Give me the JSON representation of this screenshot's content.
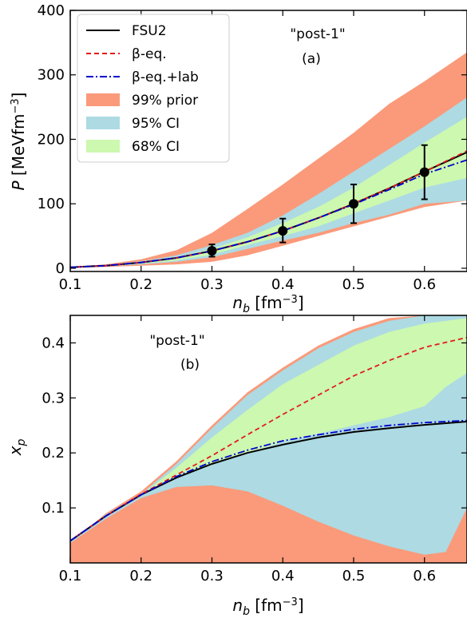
{
  "chart_data": [
    {
      "panel": "(a)",
      "type": "line",
      "annotation": "\"post-1\"",
      "panel_label": "(a)",
      "xlabel_sym": "n",
      "xlabel_sub": "b",
      "xlabel_unit": " [fm",
      "xlabel_exp": "−3",
      "xlabel_close": "]",
      "ylabel_sym": "P",
      "ylabel_unit": " [MeVfm",
      "ylabel_exp": "−3",
      "ylabel_close": "]",
      "xlim": [
        0.1,
        0.66
      ],
      "ylim": [
        -5,
        400
      ],
      "xticks": [
        0.1,
        0.2,
        0.3,
        0.4,
        0.5,
        0.6
      ],
      "xtick_labels": [
        "0.1",
        "0.2",
        "0.3",
        "0.4",
        "0.5",
        "0.6"
      ],
      "yticks": [
        0,
        100,
        200,
        300,
        400
      ],
      "ytick_labels": [
        "0",
        "100",
        "200",
        "300",
        "400"
      ],
      "legend_placement": "top-left",
      "legend": [
        {
          "label": "FSU2",
          "kind": "line",
          "color": "#000000",
          "dash": ""
        },
        {
          "label": "β-eq.",
          "kind": "line",
          "color": "#e41a1c",
          "dash": "6,4"
        },
        {
          "label": "β-eq.+lab",
          "kind": "line",
          "color": "#0000cc",
          "dash": "9,3,2,3"
        },
        {
          "label": "99% prior",
          "kind": "patch",
          "color": "#fa9a7a"
        },
        {
          "label": "95% CI",
          "kind": "patch",
          "color": "#addae3"
        },
        {
          "label": "68% CI",
          "kind": "patch",
          "color": "#ccf8b0"
        }
      ],
      "bands": [
        {
          "name": "99% prior",
          "color": "#fa9a7a",
          "x": [
            0.1,
            0.15,
            0.2,
            0.25,
            0.3,
            0.35,
            0.4,
            0.45,
            0.5,
            0.55,
            0.6,
            0.66
          ],
          "low": [
            1,
            2,
            4,
            6,
            10,
            20,
            35,
            50,
            65,
            80,
            95,
            105
          ],
          "high": [
            2,
            6,
            14,
            28,
            55,
            92,
            130,
            170,
            210,
            255,
            290,
            335
          ]
        },
        {
          "name": "95% CI",
          "color": "#addae3",
          "x": [
            0.1,
            0.15,
            0.2,
            0.25,
            0.3,
            0.35,
            0.4,
            0.45,
            0.5,
            0.55,
            0.6,
            0.66
          ],
          "low": [
            1,
            3,
            6,
            10,
            17,
            30,
            43,
            55,
            70,
            83,
            100,
            105
          ],
          "high": [
            2,
            5,
            11,
            20,
            36,
            55,
            82,
            115,
            150,
            185,
            220,
            265
          ]
        },
        {
          "name": "68% CI",
          "color": "#ccf8b0",
          "x": [
            0.1,
            0.15,
            0.2,
            0.25,
            0.3,
            0.35,
            0.4,
            0.45,
            0.5,
            0.55,
            0.6,
            0.66
          ],
          "low": [
            1,
            3,
            7,
            12,
            21,
            36,
            50,
            65,
            85,
            105,
            125,
            140
          ],
          "high": [
            2,
            4,
            9,
            17,
            30,
            48,
            70,
            95,
            125,
            160,
            195,
            235
          ]
        }
      ],
      "series": [
        {
          "name": "FSU2",
          "color": "#000000",
          "dash": "",
          "width": 2,
          "x": [
            0.1,
            0.15,
            0.2,
            0.25,
            0.3,
            0.35,
            0.4,
            0.45,
            0.5,
            0.55,
            0.6,
            0.66
          ],
          "y": [
            1.5,
            4,
            9,
            16,
            27,
            41,
            58,
            78,
            100,
            124,
            150,
            180
          ]
        },
        {
          "name": "β-eq.",
          "color": "#e41a1c",
          "dash": "6,4",
          "width": 1.8,
          "x": [
            0.1,
            0.15,
            0.2,
            0.25,
            0.3,
            0.35,
            0.4,
            0.45,
            0.5,
            0.55,
            0.6,
            0.66
          ],
          "y": [
            1.5,
            4,
            9,
            16,
            27,
            41,
            58,
            78,
            100,
            124,
            150,
            182
          ]
        },
        {
          "name": "β-eq.+lab",
          "color": "#0000cc",
          "dash": "9,3,2,3",
          "width": 1.8,
          "x": [
            0.1,
            0.15,
            0.2,
            0.25,
            0.3,
            0.35,
            0.4,
            0.45,
            0.5,
            0.55,
            0.6,
            0.66
          ],
          "y": [
            1.5,
            4,
            9,
            16,
            27,
            41,
            58,
            78,
            99,
            122,
            146,
            168
          ]
        }
      ],
      "points": [
        {
          "x": 0.3,
          "y": 27,
          "err_low": 18,
          "err_high": 37
        },
        {
          "x": 0.4,
          "y": 58,
          "err_low": 40,
          "err_high": 77
        },
        {
          "x": 0.5,
          "y": 100,
          "err_low": 70,
          "err_high": 130
        },
        {
          "x": 0.6,
          "y": 149,
          "err_low": 107,
          "err_high": 191
        }
      ]
    },
    {
      "panel": "(b)",
      "type": "line",
      "annotation": "\"post-1\"",
      "panel_label": "(b)",
      "xlabel_sym": "n",
      "xlabel_sub": "b",
      "xlabel_unit": " [fm",
      "xlabel_exp": "−3",
      "xlabel_close": "]",
      "ylabel_sym": "x",
      "ylabel_sub": "p",
      "xlim": [
        0.1,
        0.66
      ],
      "ylim": [
        0,
        0.45
      ],
      "xticks": [
        0.1,
        0.2,
        0.3,
        0.4,
        0.5,
        0.6
      ],
      "xtick_labels": [
        "0.1",
        "0.2",
        "0.3",
        "0.4",
        "0.5",
        "0.6"
      ],
      "yticks": [
        0.1,
        0.2,
        0.3,
        0.4
      ],
      "ytick_labels": [
        "0.1",
        "0.2",
        "0.3",
        "0.4"
      ],
      "bands": [
        {
          "name": "99% prior",
          "color": "#fa9a7a",
          "x": [
            0.1,
            0.15,
            0.2,
            0.25,
            0.3,
            0.35,
            0.4,
            0.45,
            0.5,
            0.55,
            0.6,
            0.63,
            0.66
          ],
          "low": [
            0,
            0,
            0,
            0,
            0,
            0,
            0,
            0,
            0,
            0,
            0,
            0,
            0
          ],
          "high": [
            0.036,
            0.09,
            0.13,
            0.185,
            0.25,
            0.31,
            0.355,
            0.395,
            0.425,
            0.445,
            0.45,
            0.45,
            0.45
          ]
        },
        {
          "name": "95% CI",
          "color": "#addae3",
          "x": [
            0.1,
            0.15,
            0.2,
            0.25,
            0.3,
            0.35,
            0.4,
            0.45,
            0.5,
            0.55,
            0.6,
            0.63,
            0.66
          ],
          "low": [
            0.036,
            0.08,
            0.118,
            0.138,
            0.141,
            0.13,
            0.104,
            0.075,
            0.05,
            0.03,
            0.015,
            0.02,
            0.1
          ],
          "high": [
            0.038,
            0.088,
            0.125,
            0.18,
            0.245,
            0.305,
            0.35,
            0.39,
            0.42,
            0.44,
            0.45,
            0.45,
            0.45
          ]
        },
        {
          "name": "68% CI",
          "color": "#ccf8b0",
          "x": [
            0.1,
            0.15,
            0.2,
            0.25,
            0.3,
            0.35,
            0.4,
            0.45,
            0.5,
            0.55,
            0.6,
            0.63,
            0.66
          ],
          "low": [
            0.038,
            0.083,
            0.122,
            0.155,
            0.18,
            0.2,
            0.22,
            0.235,
            0.25,
            0.265,
            0.285,
            0.32,
            0.345
          ],
          "high": [
            0.038,
            0.085,
            0.124,
            0.173,
            0.228,
            0.278,
            0.325,
            0.36,
            0.395,
            0.42,
            0.435,
            0.44,
            0.445
          ]
        }
      ],
      "series": [
        {
          "name": "FSU2",
          "color": "#000000",
          "dash": "",
          "width": 2,
          "x": [
            0.1,
            0.15,
            0.2,
            0.25,
            0.3,
            0.35,
            0.4,
            0.45,
            0.5,
            0.55,
            0.6,
            0.66
          ],
          "y": [
            0.04,
            0.085,
            0.124,
            0.155,
            0.18,
            0.2,
            0.215,
            0.228,
            0.238,
            0.245,
            0.251,
            0.257
          ]
        },
        {
          "name": "β-eq.",
          "color": "#e41a1c",
          "dash": "6,4",
          "width": 1.8,
          "x": [
            0.1,
            0.15,
            0.2,
            0.25,
            0.3,
            0.35,
            0.4,
            0.45,
            0.5,
            0.55,
            0.6,
            0.66
          ],
          "y": [
            0.04,
            0.085,
            0.125,
            0.16,
            0.195,
            0.233,
            0.27,
            0.305,
            0.34,
            0.368,
            0.392,
            0.41
          ]
        },
        {
          "name": "β-eq.+lab",
          "color": "#0000cc",
          "dash": "9,3,2,3",
          "width": 1.8,
          "x": [
            0.1,
            0.15,
            0.2,
            0.25,
            0.3,
            0.35,
            0.4,
            0.45,
            0.5,
            0.55,
            0.6,
            0.66
          ],
          "y": [
            0.04,
            0.085,
            0.124,
            0.157,
            0.184,
            0.205,
            0.222,
            0.233,
            0.243,
            0.25,
            0.255,
            0.259
          ]
        }
      ]
    }
  ]
}
